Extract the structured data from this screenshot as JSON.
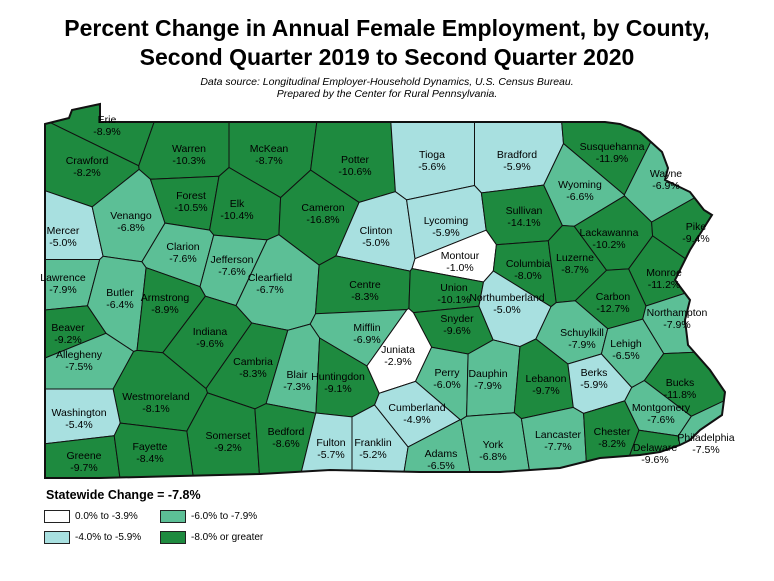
{
  "title_line1": "Percent Change in Annual Female Employment, by County,",
  "title_line2": "Second Quarter 2019 to Second Quarter 2020",
  "source_line1": "Data source: Longitudinal Employer-Household Dynamics, U.S. Census Bureau.",
  "source_line2": "Prepared by the Center for Rural Pennsylvania.",
  "statewide": "Statewide Change = -7.8%",
  "colors": {
    "c1": "#ffffff",
    "c2": "#a8e0e0",
    "c3": "#5cbf96",
    "c4": "#1e8a3f",
    "border": "#111111",
    "bg": "#ffffff"
  },
  "legend": [
    {
      "label": "0.0% to -3.9%",
      "cls": "c1"
    },
    {
      "label": "-6.0% to -7.9%",
      "cls": "c3"
    },
    {
      "label": "-4.0% to -5.9%",
      "cls": "c2"
    },
    {
      "label": "-8.0% or greater",
      "cls": "c4"
    }
  ],
  "counties": [
    {
      "name": "Erie",
      "value": "-8.9%",
      "cls": "c4"
    },
    {
      "name": "Crawford",
      "value": "-8.2%",
      "cls": "c4"
    },
    {
      "name": "Warren",
      "value": "-10.3%",
      "cls": "c4"
    },
    {
      "name": "McKean",
      "value": "-8.7%",
      "cls": "c4"
    },
    {
      "name": "Potter",
      "value": "-10.6%",
      "cls": "c4"
    },
    {
      "name": "Tioga",
      "value": "-5.6%",
      "cls": "c2"
    },
    {
      "name": "Bradford",
      "value": "-5.9%",
      "cls": "c2"
    },
    {
      "name": "Susquehanna",
      "value": "-11.9%",
      "cls": "c4"
    },
    {
      "name": "Wayne",
      "value": "-6.9%",
      "cls": "c3"
    },
    {
      "name": "Mercer",
      "value": "-5.0%",
      "cls": "c2"
    },
    {
      "name": "Venango",
      "value": "-6.8%",
      "cls": "c3"
    },
    {
      "name": "Forest",
      "value": "-10.5%",
      "cls": "c4"
    },
    {
      "name": "Elk",
      "value": "-10.4%",
      "cls": "c4"
    },
    {
      "name": "Cameron",
      "value": "-16.8%",
      "cls": "c4"
    },
    {
      "name": "Clinton",
      "value": "-5.0%",
      "cls": "c2"
    },
    {
      "name": "Lycoming",
      "value": "-5.9%",
      "cls": "c2"
    },
    {
      "name": "Sullivan",
      "value": "-14.1%",
      "cls": "c4"
    },
    {
      "name": "Wyoming",
      "value": "-6.6%",
      "cls": "c3"
    },
    {
      "name": "Lackawanna",
      "value": "-10.2%",
      "cls": "c4"
    },
    {
      "name": "Pike",
      "value": "-9.4%",
      "cls": "c4"
    },
    {
      "name": "Clarion",
      "value": "-7.6%",
      "cls": "c3"
    },
    {
      "name": "Jefferson",
      "value": "-7.6%",
      "cls": "c3"
    },
    {
      "name": "Lawrence",
      "value": "-7.9%",
      "cls": "c3"
    },
    {
      "name": "Butler",
      "value": "-6.4%",
      "cls": "c3"
    },
    {
      "name": "Clearfield",
      "value": "-6.7%",
      "cls": "c3"
    },
    {
      "name": "Centre",
      "value": "-8.3%",
      "cls": "c4"
    },
    {
      "name": "Montour",
      "value": "-1.0%",
      "cls": "c1"
    },
    {
      "name": "Columbia",
      "value": "-8.0%",
      "cls": "c4"
    },
    {
      "name": "Luzerne",
      "value": "-8.7%",
      "cls": "c4"
    },
    {
      "name": "Monroe",
      "value": "-11.2%",
      "cls": "c4"
    },
    {
      "name": "Armstrong",
      "value": "-8.9%",
      "cls": "c4"
    },
    {
      "name": "Union",
      "value": "-10.1%",
      "cls": "c4"
    },
    {
      "name": "Northumberland",
      "value": "-5.0%",
      "cls": "c2"
    },
    {
      "name": "Carbon",
      "value": "-12.7%",
      "cls": "c4"
    },
    {
      "name": "Beaver",
      "value": "-9.2%",
      "cls": "c4"
    },
    {
      "name": "Indiana",
      "value": "-9.6%",
      "cls": "c4"
    },
    {
      "name": "Snyder",
      "value": "-9.6%",
      "cls": "c4"
    },
    {
      "name": "Mifflin",
      "value": "-6.9%",
      "cls": "c3"
    },
    {
      "name": "Schuylkill",
      "value": "-7.9%",
      "cls": "c3"
    },
    {
      "name": "Northampton",
      "value": "-7.9%",
      "cls": "c3"
    },
    {
      "name": "Lehigh",
      "value": "-6.5%",
      "cls": "c3"
    },
    {
      "name": "Allegheny",
      "value": "-7.5%",
      "cls": "c3"
    },
    {
      "name": "Cambria",
      "value": "-8.3%",
      "cls": "c4"
    },
    {
      "name": "Blair",
      "value": "-7.3%",
      "cls": "c3"
    },
    {
      "name": "Huntingdon",
      "value": "-9.1%",
      "cls": "c4"
    },
    {
      "name": "Juniata",
      "value": "-2.9%",
      "cls": "c1"
    },
    {
      "name": "Perry",
      "value": "-6.0%",
      "cls": "c3"
    },
    {
      "name": "Dauphin",
      "value": "-7.9%",
      "cls": "c3"
    },
    {
      "name": "Lebanon",
      "value": "-9.7%",
      "cls": "c4"
    },
    {
      "name": "Berks",
      "value": "-5.9%",
      "cls": "c2"
    },
    {
      "name": "Bucks",
      "value": "-11.8%",
      "cls": "c4"
    },
    {
      "name": "Westmoreland",
      "value": "-8.1%",
      "cls": "c4"
    },
    {
      "name": "Washington",
      "value": "-5.4%",
      "cls": "c2"
    },
    {
      "name": "Somerset",
      "value": "-9.2%",
      "cls": "c4"
    },
    {
      "name": "Bedford",
      "value": "-8.6%",
      "cls": "c4"
    },
    {
      "name": "Fulton",
      "value": "-5.7%",
      "cls": "c2"
    },
    {
      "name": "Franklin",
      "value": "-5.2%",
      "cls": "c2"
    },
    {
      "name": "Cumberland",
      "value": "-4.9%",
      "cls": "c2"
    },
    {
      "name": "Adams",
      "value": "-6.5%",
      "cls": "c3"
    },
    {
      "name": "York",
      "value": "-6.8%",
      "cls": "c3"
    },
    {
      "name": "Lancaster",
      "value": "-7.7%",
      "cls": "c3"
    },
    {
      "name": "Chester",
      "value": "-8.2%",
      "cls": "c4"
    },
    {
      "name": "Montgomery",
      "value": "-7.6%",
      "cls": "c3"
    },
    {
      "name": "Delaware",
      "value": "-9.6%",
      "cls": "c4"
    },
    {
      "name": "Philadelphia",
      "value": "-7.5%",
      "cls": "c3"
    },
    {
      "name": "Greene",
      "value": "-9.7%",
      "cls": "c4"
    },
    {
      "name": "Fayette",
      "value": "-8.4%",
      "cls": "c4"
    }
  ]
}
